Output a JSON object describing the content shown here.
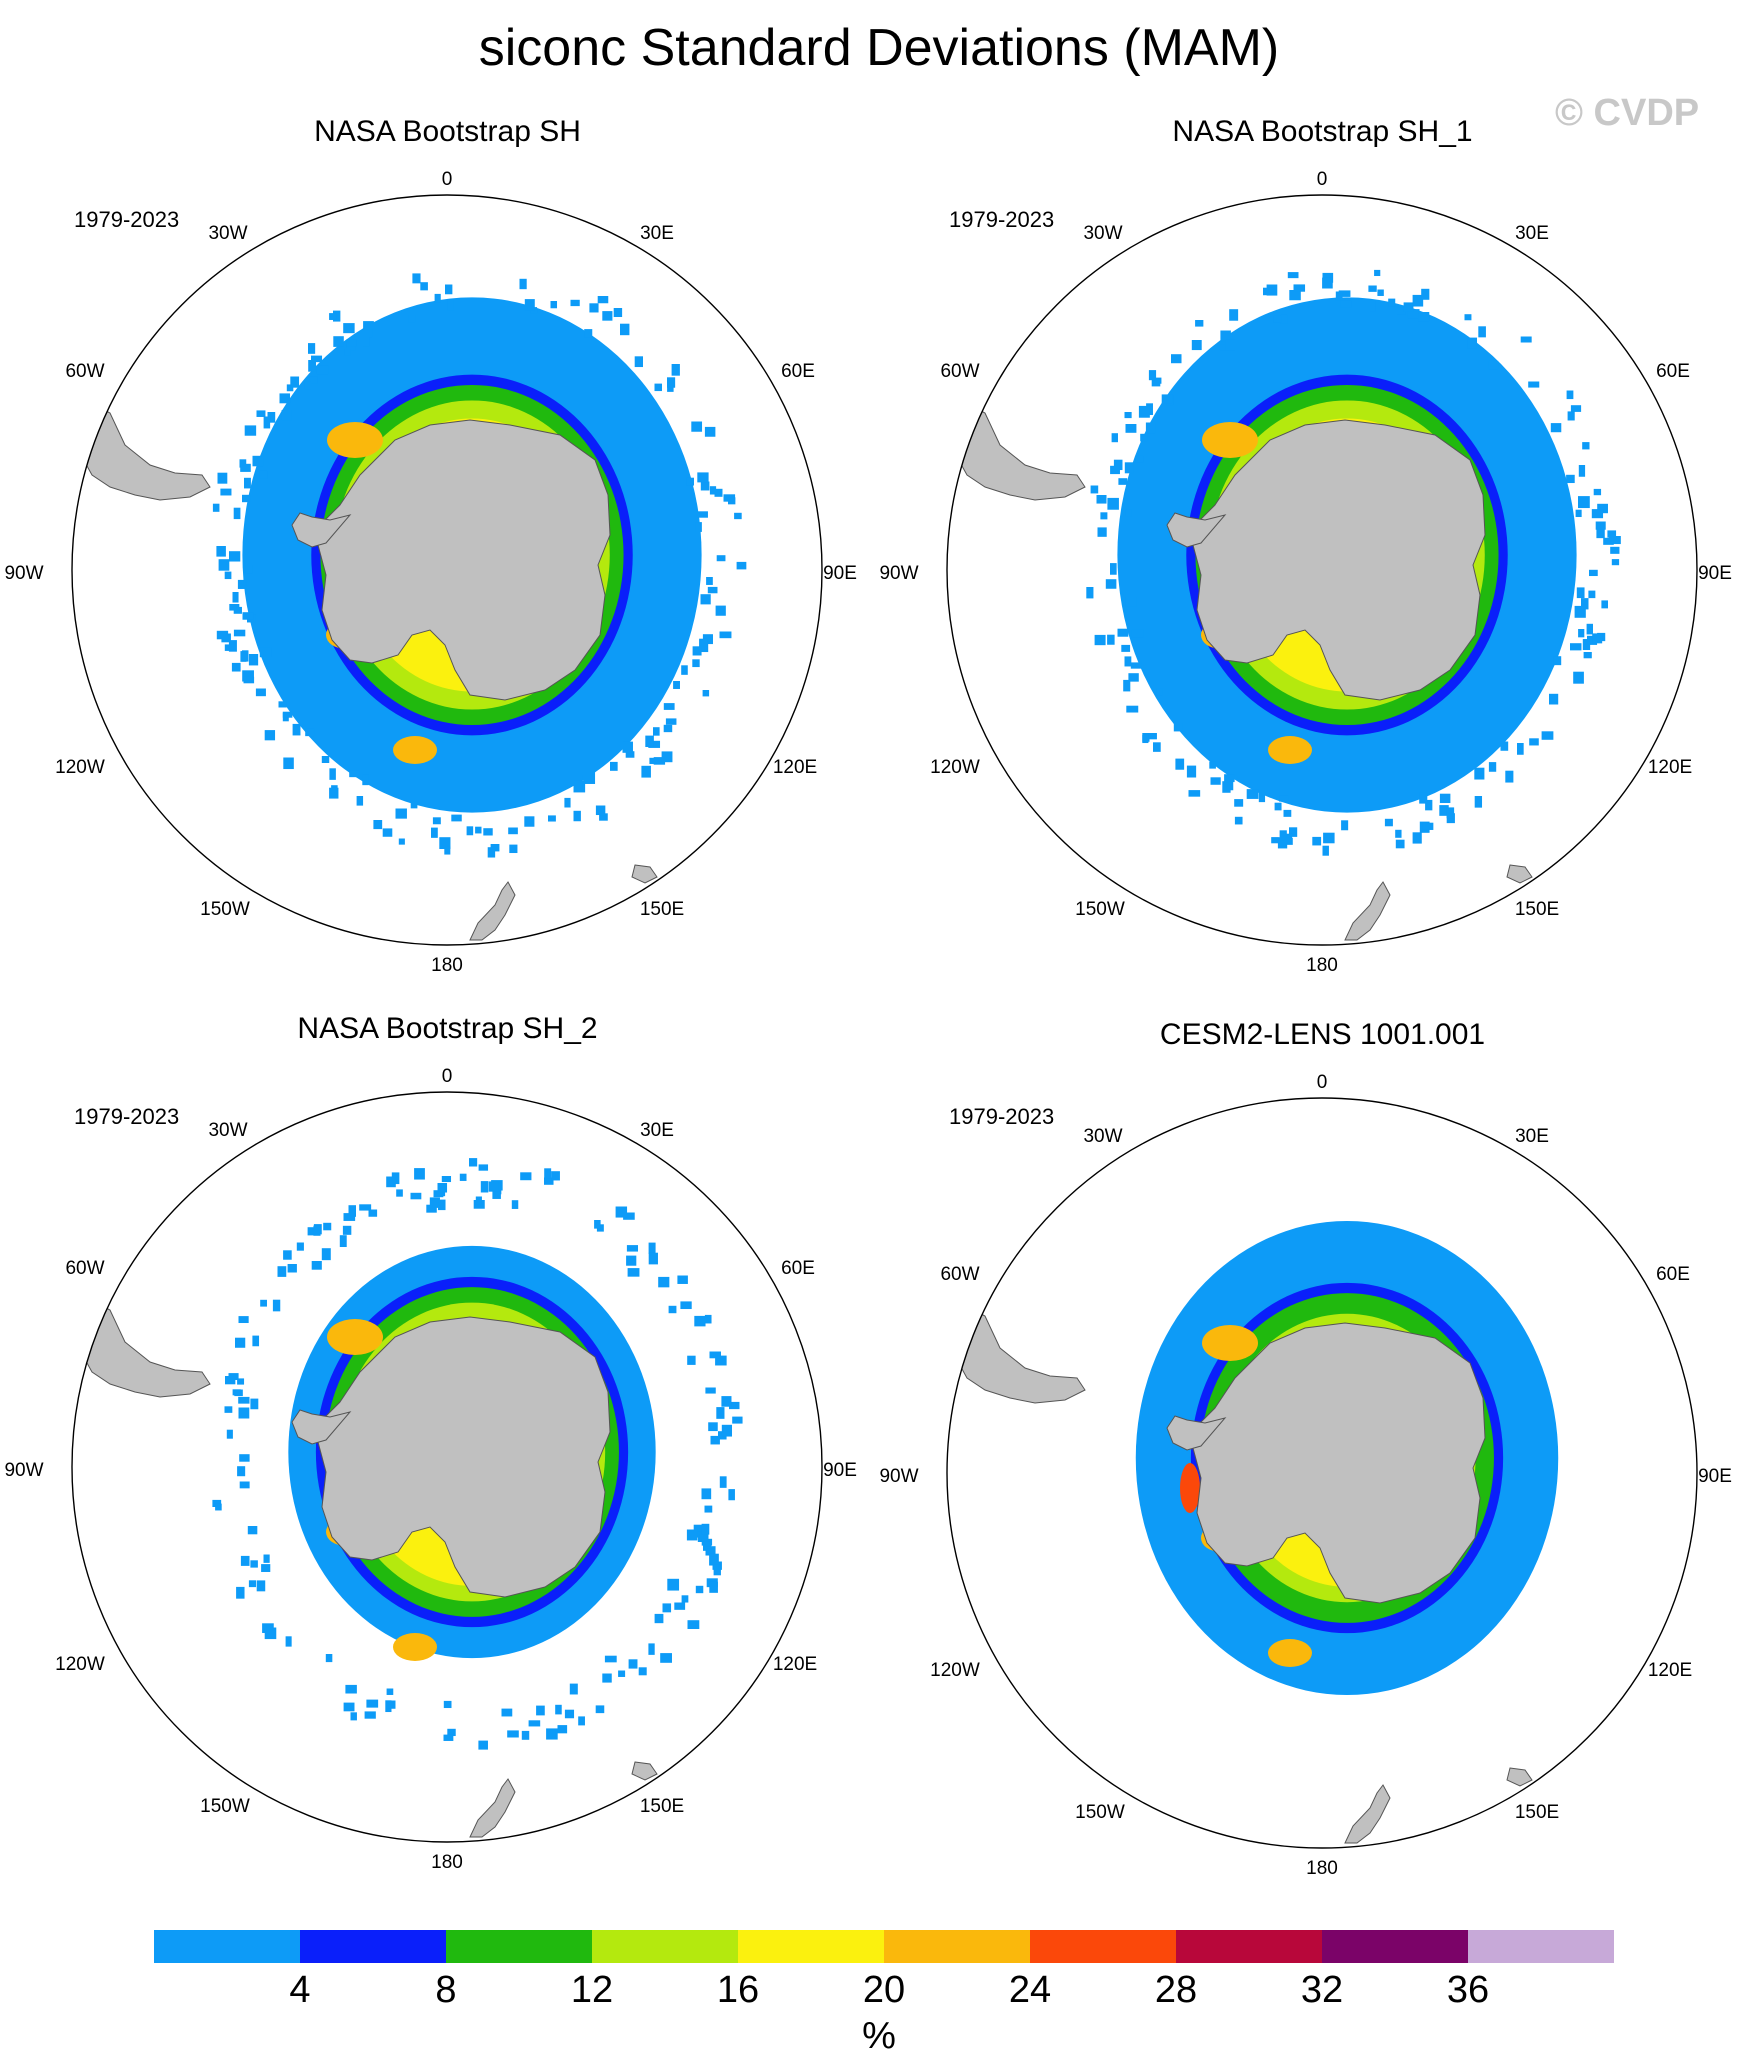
{
  "title": "siconc Standard Deviations (MAM)",
  "watermark": "© CVDP",
  "longitude_labels": [
    "0",
    "30E",
    "60E",
    "90E",
    "120E",
    "150E",
    "180",
    "150W",
    "120W",
    "90W",
    "60W",
    "30W"
  ],
  "panels": [
    {
      "title": "NASA Bootstrap SH",
      "period": "1979-2023"
    },
    {
      "title": "NASA Bootstrap SH_1",
      "period": "1979-2023"
    },
    {
      "title": "NASA Bootstrap SH_2",
      "period": "1979-2023"
    },
    {
      "title": "CESM2-LENS 1001.001",
      "period": "1979-2023"
    }
  ],
  "colorbar": {
    "colors": [
      "#0d9bf7",
      "#0a1ffa",
      "#20b90e",
      "#b4e90e",
      "#fbf10e",
      "#fab80c",
      "#fb480a",
      "#b8073a",
      "#7b0368",
      "#c7a9d8"
    ],
    "labels": [
      "4",
      "8",
      "12",
      "16",
      "20",
      "24",
      "28",
      "32",
      "36"
    ],
    "units": "%"
  },
  "land_color": "#c0c0c0"
}
